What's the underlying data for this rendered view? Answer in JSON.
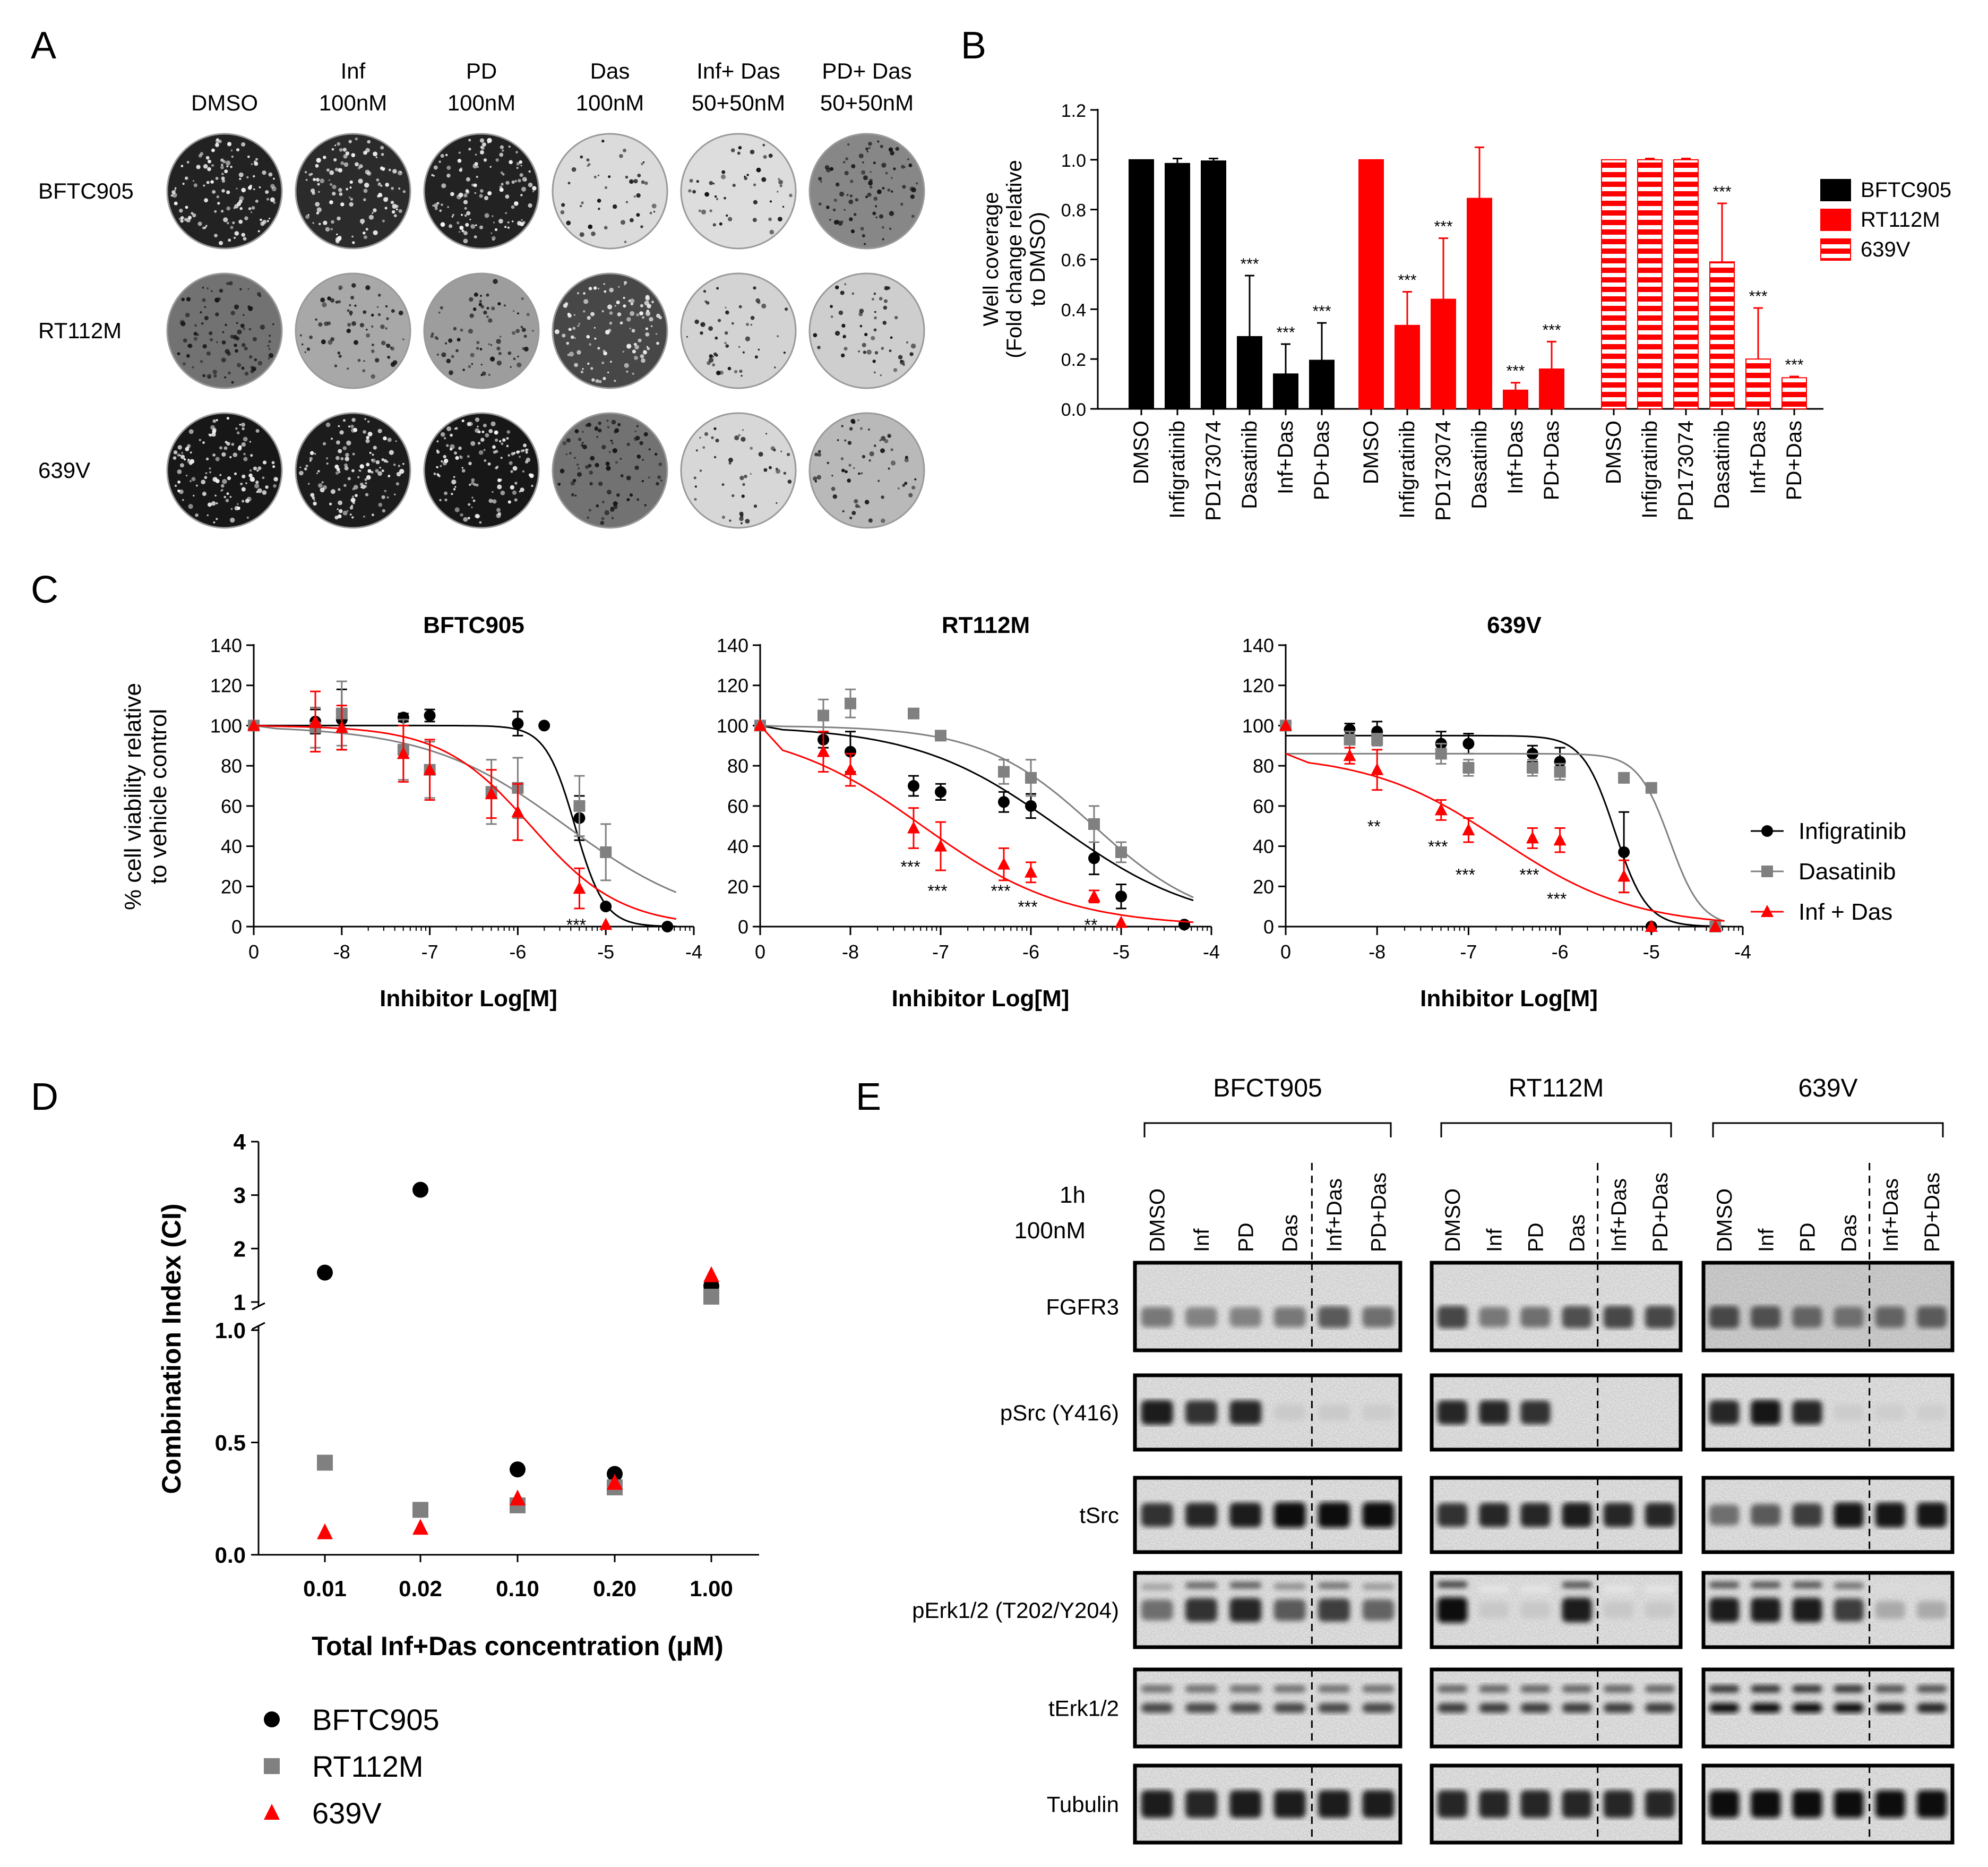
{
  "panels": {
    "A": "A",
    "B": "B",
    "C": "C",
    "D": "D",
    "E": "E"
  },
  "panel_a": {
    "columns": [
      {
        "line1": "",
        "line2": "DMSO"
      },
      {
        "line1": "Inf",
        "line2": "100nM"
      },
      {
        "line1": "PD",
        "line2": "100nM"
      },
      {
        "line1": "Das",
        "line2": "100nM"
      },
      {
        "line1": "Inf+ Das",
        "line2": "50+50nM"
      },
      {
        "line1": "PD+ Das",
        "line2": "50+50nM"
      }
    ],
    "rows": [
      "BFTC905",
      "RT112M",
      "639V"
    ],
    "coverage_levels": [
      [
        0.92,
        0.88,
        0.92,
        0.06,
        0.05,
        0.45
      ],
      [
        0.55,
        0.3,
        0.35,
        0.75,
        0.1,
        0.12
      ],
      [
        0.97,
        0.95,
        0.97,
        0.55,
        0.08,
        0.22
      ]
    ]
  },
  "chart_data": [
    {
      "type": "bar",
      "panel": "B",
      "ylabel": [
        "Well coverage",
        "(Fold change relative",
        "to DMSO)"
      ],
      "ylim": [
        0,
        1.2
      ],
      "yticks": [
        "0.0",
        "0.2",
        "0.4",
        "0.6",
        "0.8",
        "1.0",
        "1.2"
      ],
      "categories": [
        "DMSO",
        "Infigratinib",
        "PD173074",
        "Dasatinib",
        "Inf+Das",
        "PD+Das"
      ],
      "series": [
        {
          "name": "BFTC905",
          "color": "#000000",
          "pattern": "solid",
          "values": [
            1.0,
            0.985,
            0.995,
            0.29,
            0.14,
            0.195
          ],
          "errors": [
            0,
            0.02,
            0.01,
            0.245,
            0.12,
            0.15
          ],
          "stars": [
            "",
            "",
            "",
            "***",
            "***",
            "***"
          ]
        },
        {
          "name": "RT112M",
          "color": "#ff0000",
          "pattern": "solid",
          "values": [
            1.0,
            0.335,
            0.44,
            0.845,
            0.075,
            0.16
          ],
          "errors": [
            0,
            0.135,
            0.245,
            0.205,
            0.03,
            0.11
          ],
          "stars": [
            "",
            "***",
            "***",
            "",
            "***",
            "***"
          ]
        },
        {
          "name": "639V",
          "color": "#ff0000",
          "pattern": "striped",
          "values": [
            1.0,
            1.0,
            1.0,
            0.59,
            0.2,
            0.125
          ],
          "errors": [
            0,
            0.005,
            0.005,
            0.235,
            0.205,
            0.005
          ],
          "stars": [
            "",
            "",
            "",
            "***",
            "***",
            "***"
          ]
        }
      ]
    },
    {
      "type": "line",
      "panel": "C",
      "ylabel": [
        "% cell viability relative",
        "to vehicle control"
      ],
      "xlabel": "Inhibitor Log[M]",
      "ylim": [
        0,
        140
      ],
      "yticks": [
        "0",
        "20",
        "40",
        "60",
        "80",
        "100",
        "120",
        "140"
      ],
      "xticks": [
        "0",
        "-8",
        "-7",
        "-6",
        "-5",
        "-4"
      ],
      "legend": [
        "Infigratinib",
        "Dasatinib",
        "Inf + Das"
      ],
      "legend_position": "right",
      "series_colors": {
        "Infigratinib": "#000000",
        "Dasatinib": "#808080",
        "Inf + Das": "#ff0000"
      },
      "plots": [
        {
          "title": "BFTC905",
          "series": [
            {
              "name": "Infigratinib",
              "x": [
                -9,
                -8.3,
                -8,
                -7.3,
                -7,
                -6,
                -5.7,
                -5.3,
                -5,
                -4.3
              ],
              "y": [
                100,
                102,
                103,
                104,
                105,
                101,
                100,
                54,
                10,
                0
              ],
              "err": [
                0,
                6,
                15,
                2,
                3,
                6,
                0,
                11,
                0,
                0
              ]
            },
            {
              "name": "Dasatinib",
              "x": [
                -9,
                -8.3,
                -8,
                -7.3,
                -7,
                -6.3,
                -6,
                -5.3,
                -5
              ],
              "y": [
                100,
                99,
                106,
                88,
                78,
                67,
                69,
                60,
                37
              ],
              "err": [
                0,
                10,
                16,
                15,
                14,
                16,
                15,
                15,
                14
              ]
            },
            {
              "name": "Inf + Das",
              "x": [
                -9,
                -8.3,
                -8,
                -7.3,
                -7,
                -6.3,
                -6,
                -5.3,
                -5
              ],
              "y": [
                100,
                102,
                99,
                86,
                78,
                66,
                57,
                19,
                1
              ],
              "err": [
                0,
                15,
                11,
                14,
                15,
                12,
                14,
                10,
                0
              ]
            }
          ],
          "fits": {
            "Infigratinib": {
              "top": 100,
              "bottom": 0,
              "ec50": -5.35,
              "h": 2.6
            },
            "Dasatinib": {
              "top": 100,
              "bottom": 0,
              "ec50": -5.45,
              "h": 0.55
            },
            "Inf + Das": {
              "top": 100,
              "bottom": 0,
              "ec50": -5.85,
              "h": 0.85
            }
          },
          "annotations": [
            {
              "x": -5.3,
              "y": 1,
              "text": "***"
            }
          ]
        },
        {
          "title": "RT112M",
          "series": [
            {
              "name": "Infigratinib",
              "x": [
                -9,
                -8.3,
                -8,
                -7.3,
                -7,
                -6.3,
                -6,
                -5.3,
                -5,
                -4.3
              ],
              "y": [
                100,
                93,
                87,
                70,
                67,
                62,
                60,
                34,
                15,
                1
              ],
              "err": [
                0,
                4,
                10,
                5,
                4,
                5,
                6,
                8,
                6,
                0
              ]
            },
            {
              "name": "Dasatinib",
              "x": [
                -9,
                -8.3,
                -8,
                -7.3,
                -7,
                -6.3,
                -6,
                -5.3,
                -5
              ],
              "y": [
                100,
                105,
                111,
                106,
                95,
                77,
                74,
                51,
                37
              ],
              "err": [
                0,
                8,
                7,
                2,
                2,
                6,
                9,
                9,
                5
              ]
            },
            {
              "name": "Inf + Das",
              "x": [
                -9,
                -8.3,
                -8,
                -7.3,
                -7,
                -6.3,
                -6,
                -5.3,
                -5
              ],
              "y": [
                100,
                87,
                78,
                49,
                40,
                31,
                27,
                15,
                2
              ],
              "err": [
                0,
                10,
                8,
                10,
                12,
                8,
                5,
                3,
                0
              ]
            }
          ],
          "fits": {
            "Infigratinib": {
              "top": 100,
              "bottom": 0,
              "ec50": -5.7,
              "h": 0.55
            },
            "Dasatinib": {
              "top": 100,
              "bottom": 0,
              "ec50": -5.3,
              "h": 0.7
            },
            "Inf + Das": {
              "top": 100,
              "bottom": 0,
              "ec50": -7.2,
              "h": 0.55
            }
          },
          "annotations": [
            {
              "x": -7.3,
              "y": 30,
              "text": "***"
            },
            {
              "x": -7,
              "y": 18,
              "text": "***"
            },
            {
              "x": -6.3,
              "y": 18,
              "text": "***"
            },
            {
              "x": -6,
              "y": 10,
              "text": "***"
            },
            {
              "x": -5.3,
              "y": 1,
              "text": "**"
            }
          ]
        },
        {
          "title": "639V",
          "series": [
            {
              "name": "Infigratinib",
              "x": [
                -9,
                -8.3,
                -8,
                -7.3,
                -7,
                -6.3,
                -6,
                -5.3,
                -5,
                -4.3
              ],
              "y": [
                100,
                98,
                97,
                91,
                91,
                86,
                82,
                37,
                0,
                0
              ],
              "err": [
                0,
                3,
                5,
                6,
                5,
                4,
                7,
                20,
                0,
                0
              ]
            },
            {
              "name": "Dasatinib",
              "x": [
                -9,
                -8.3,
                -8,
                -7.3,
                -7,
                -6.3,
                -6,
                -5.3,
                -5,
                -4.3
              ],
              "y": [
                100,
                93,
                93,
                86,
                79,
                79,
                77,
                74,
                69,
                0
              ],
              "err": [
                0,
                4,
                3,
                5,
                4,
                4,
                4,
                2,
                2,
                0
              ]
            },
            {
              "name": "Inf + Das",
              "x": [
                -9,
                -8.3,
                -8,
                -7.3,
                -7,
                -6.3,
                -6,
                -5.3,
                -5,
                -4.3
              ],
              "y": [
                100,
                85,
                78,
                58,
                48,
                44,
                43,
                25,
                0,
                0
              ],
              "err": [
                0,
                4,
                10,
                5,
                6,
                5,
                6,
                8,
                0,
                0
              ]
            }
          ],
          "fits": {
            "Infigratinib": {
              "top": 95,
              "bottom": 0,
              "ec50": -5.4,
              "h": 2.5
            },
            "Dasatinib": {
              "top": 86,
              "bottom": 0,
              "ec50": -4.8,
              "h": 2.5
            },
            "Inf + Das": {
              "top": 86,
              "bottom": 0,
              "ec50": -6.65,
              "h": 0.6
            }
          },
          "annotations": [
            {
              "x": -8,
              "y": 50,
              "text": "**"
            },
            {
              "x": -7.3,
              "y": 40,
              "text": "***"
            },
            {
              "x": -7,
              "y": 26,
              "text": "***"
            },
            {
              "x": -6.3,
              "y": 26,
              "text": "***"
            },
            {
              "x": -6,
              "y": 14,
              "text": "***"
            }
          ]
        }
      ]
    },
    {
      "type": "scatter",
      "panel": "D",
      "ylabel": "Combination Index (CI)",
      "xlabel": "Total Inf+Das concentration (μM)",
      "categories": [
        "0.01",
        "0.02",
        "0.10",
        "0.20",
        "1.00"
      ],
      "yticks_lower": [
        "0.0",
        "0.5",
        "1.0"
      ],
      "yticks_upper": [
        "1",
        "2",
        "3",
        "4"
      ],
      "ylim": [
        0,
        4
      ],
      "y_axis_break": 1.0,
      "series": [
        {
          "name": "BFTC905",
          "marker": "circle",
          "color": "#000000",
          "values": [
            1.55,
            3.1,
            0.38,
            0.36,
            1.3
          ]
        },
        {
          "name": "RT112M",
          "marker": "square",
          "color": "#808080",
          "values": [
            0.41,
            0.2,
            0.22,
            0.3,
            1.1
          ]
        },
        {
          "name": "639V",
          "marker": "triangle",
          "color": "#ff0000",
          "values": [
            0.1,
            0.12,
            0.25,
            0.32,
            1.5
          ]
        }
      ]
    }
  ],
  "panel_e": {
    "time_label": "1h",
    "dose_label": "100nM",
    "groups": [
      {
        "name": "BFCT905",
        "lanes": [
          "DMSO",
          "Inf",
          "PD",
          "Das",
          "Inf+Das",
          "PD+Das"
        ]
      },
      {
        "name": "RT112M",
        "lanes": [
          "DMSO",
          "Inf",
          "PD",
          "Das",
          "Inf+Das",
          "PD+Das"
        ]
      },
      {
        "name": "639V",
        "lanes": [
          "DMSO",
          "Inf",
          "PD",
          "Das",
          "Inf+Das",
          "PD+Das"
        ]
      }
    ],
    "blots": [
      {
        "label": "FGFR3",
        "intensity": [
          [
            0.45,
            0.4,
            0.4,
            0.45,
            0.6,
            0.5
          ],
          [
            0.7,
            0.45,
            0.5,
            0.65,
            0.7,
            0.7
          ],
          [
            0.7,
            0.65,
            0.55,
            0.5,
            0.55,
            0.6
          ]
        ]
      },
      {
        "label": "pSrc (Y416)",
        "intensity": [
          [
            0.9,
            0.8,
            0.85,
            0.04,
            0.04,
            0.03
          ],
          [
            0.85,
            0.85,
            0.8,
            0.0,
            0.0,
            0.0
          ],
          [
            0.85,
            0.95,
            0.85,
            0.03,
            0.02,
            0.02
          ]
        ]
      },
      {
        "label": "tSrc",
        "intensity": [
          [
            0.8,
            0.85,
            0.9,
            1.0,
            1.0,
            1.0
          ],
          [
            0.8,
            0.85,
            0.85,
            0.9,
            0.85,
            0.85
          ],
          [
            0.5,
            0.6,
            0.75,
            0.95,
            0.95,
            0.95
          ]
        ]
      },
      {
        "label": "pErk1/2 (T202/Y204)",
        "intensity": [
          [
            0.5,
            0.8,
            0.85,
            0.6,
            0.75,
            0.55
          ],
          [
            1.0,
            0.05,
            0.05,
            0.9,
            0.05,
            0.05
          ],
          [
            0.9,
            0.9,
            0.9,
            0.75,
            0.2,
            0.2
          ]
        ]
      },
      {
        "label": "tErk1/2",
        "intensity": [
          [
            0.7,
            0.7,
            0.7,
            0.7,
            0.7,
            0.7
          ],
          [
            0.75,
            0.75,
            0.75,
            0.75,
            0.75,
            0.75
          ],
          [
            1.0,
            1.0,
            1.0,
            1.0,
            0.85,
            0.85
          ]
        ]
      },
      {
        "label": "Tubulin",
        "intensity": [
          [
            0.9,
            0.85,
            0.9,
            0.9,
            0.9,
            0.9
          ],
          [
            0.85,
            0.85,
            0.85,
            0.85,
            0.85,
            0.85
          ],
          [
            1.0,
            1.0,
            1.0,
            1.0,
            1.0,
            1.0
          ]
        ]
      }
    ]
  }
}
